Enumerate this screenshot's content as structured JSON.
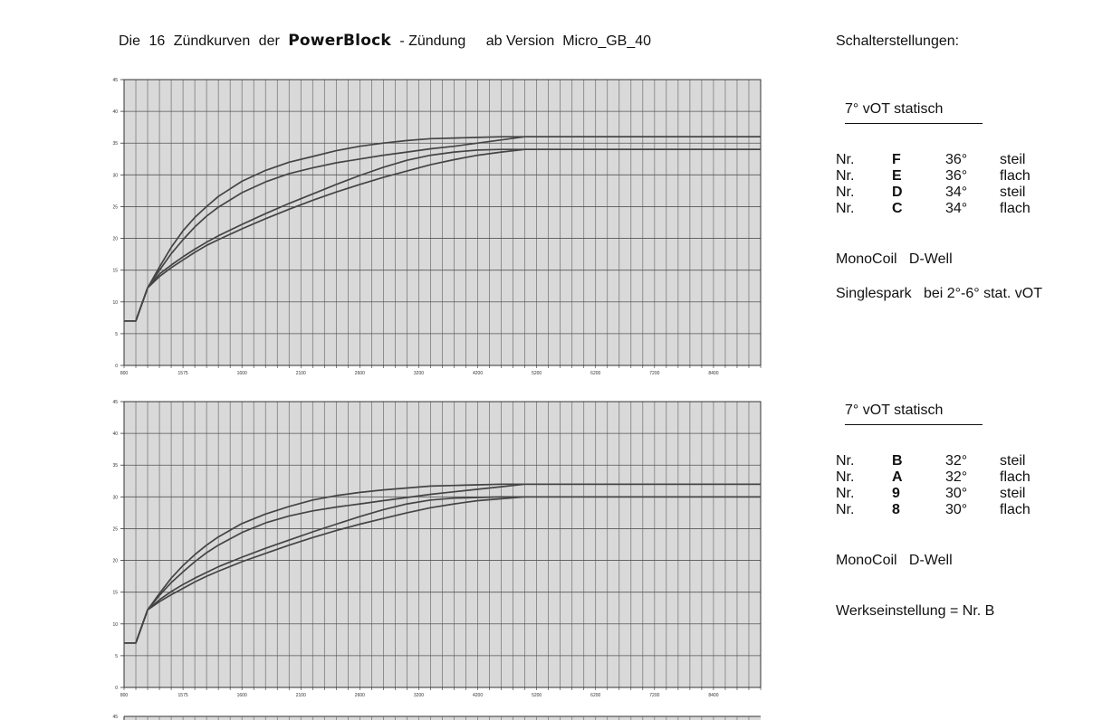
{
  "header": {
    "title_prefix": "Die",
    "title_count": "16",
    "title_word": "Zündkurven",
    "title_article": "der",
    "brand": "PowerBlock",
    "title_suffix": "- Zündung",
    "title_version": "ab Version  Micro_GB_40"
  },
  "sidebar": {
    "heading": "Schalterstellungen:",
    "panels": [
      {
        "subhead": "7° vOT  statisch",
        "settings": [
          {
            "prefix": "Nr.",
            "code": "F",
            "angle": "36°",
            "type": "steil"
          },
          {
            "prefix": "Nr.",
            "code": "E",
            "angle": "36°",
            "type": "flach"
          },
          {
            "prefix": "Nr.",
            "code": "D",
            "angle": "34°",
            "type": "steil"
          },
          {
            "prefix": "Nr.",
            "code": "C",
            "angle": "34°",
            "type": "flach"
          }
        ],
        "note1": "MonoCoil   D-Well",
        "note2": "Singlespark   bei 2°-6° stat. vOT"
      },
      {
        "subhead": "7° vOT  statisch",
        "settings": [
          {
            "prefix": "Nr.",
            "code": "B",
            "angle": "32°",
            "type": "steil"
          },
          {
            "prefix": "Nr.",
            "code": "A",
            "angle": "32°",
            "type": "flach"
          },
          {
            "prefix": "Nr.",
            "code": "9",
            "angle": "30°",
            "type": "steil"
          },
          {
            "prefix": "Nr.",
            "code": "8",
            "angle": "30°",
            "type": "flach"
          }
        ],
        "note1": "MonoCoil   D-Well",
        "note2": "Werkseinstellung = Nr. B"
      }
    ]
  },
  "chart_data": [
    {
      "type": "line",
      "title": "",
      "xlabel": "",
      "ylabel": "",
      "grid": true,
      "background": "#d9d9d9",
      "line_color": "#444444",
      "yticks": [
        0,
        5,
        10,
        15,
        20,
        25,
        30,
        35,
        40,
        45
      ],
      "ylim": [
        0,
        45
      ],
      "xtick_labels": [
        "800",
        "1575",
        "1600",
        "2100",
        "2600",
        "3200",
        "4200",
        "5200",
        "6200",
        "7200",
        "8400"
      ],
      "x_categories": 54,
      "series": [
        {
          "x": [
            0,
            1,
            2,
            3,
            4,
            5,
            6,
            7,
            8,
            10,
            12,
            14,
            16,
            18,
            20,
            22,
            24,
            26,
            28,
            30,
            32,
            34,
            54
          ],
          "values": [
            7,
            7,
            12.2,
            15.5,
            18.6,
            21.2,
            23.3,
            25,
            26.6,
            29,
            30.7,
            32,
            32.9,
            33.8,
            34.5,
            35,
            35.4,
            35.7,
            35.8,
            35.9,
            36,
            36,
            36
          ]
        },
        {
          "x": [
            0,
            1,
            2,
            3,
            4,
            5,
            6,
            7,
            8,
            10,
            12,
            14,
            16,
            18,
            20,
            22,
            24,
            26,
            28,
            30,
            32,
            34,
            54
          ],
          "values": [
            7,
            7,
            12.2,
            15,
            17.6,
            19.8,
            21.8,
            23.5,
            24.9,
            27.2,
            28.9,
            30.2,
            31.1,
            31.9,
            32.5,
            33.1,
            33.6,
            34.1,
            34.5,
            35,
            35.5,
            36,
            36
          ]
        },
        {
          "x": [
            0,
            1,
            2,
            3,
            4,
            5,
            6,
            7,
            8,
            10,
            12,
            14,
            16,
            18,
            20,
            22,
            24,
            26,
            28,
            30,
            32,
            34,
            54
          ],
          "values": [
            7,
            7,
            12.2,
            14.4,
            15.8,
            17.1,
            18.3,
            19.4,
            20.4,
            22.2,
            23.9,
            25.5,
            27,
            28.5,
            29.9,
            31.2,
            32.3,
            33.1,
            33.6,
            33.9,
            34,
            34,
            34
          ]
        },
        {
          "x": [
            0,
            1,
            2,
            3,
            4,
            5,
            6,
            7,
            8,
            10,
            12,
            14,
            16,
            18,
            20,
            22,
            24,
            26,
            28,
            30,
            32,
            34,
            54
          ],
          "values": [
            7,
            7,
            12.2,
            14,
            15.4,
            16.6,
            17.8,
            18.9,
            19.8,
            21.5,
            23.1,
            24.6,
            26,
            27.3,
            28.5,
            29.6,
            30.6,
            31.6,
            32.4,
            33.1,
            33.6,
            34,
            34
          ]
        }
      ]
    },
    {
      "type": "line",
      "title": "",
      "xlabel": "",
      "ylabel": "",
      "grid": true,
      "background": "#d9d9d9",
      "line_color": "#444444",
      "yticks": [
        0,
        5,
        10,
        15,
        20,
        25,
        30,
        35,
        40,
        45
      ],
      "ylim": [
        0,
        45
      ],
      "xtick_labels": [
        "800",
        "1575",
        "1600",
        "2100",
        "2600",
        "3200",
        "4200",
        "5200",
        "6200",
        "7200",
        "8400"
      ],
      "x_categories": 54,
      "series": [
        {
          "x": [
            0,
            1,
            2,
            3,
            4,
            5,
            6,
            7,
            8,
            10,
            12,
            14,
            16,
            18,
            20,
            22,
            24,
            26,
            28,
            30,
            32,
            34,
            54
          ],
          "values": [
            7,
            7,
            12.2,
            14.8,
            17.2,
            19.2,
            20.9,
            22.4,
            23.7,
            25.8,
            27.3,
            28.5,
            29.5,
            30.2,
            30.7,
            31.1,
            31.4,
            31.7,
            31.8,
            31.9,
            32,
            32,
            32
          ]
        },
        {
          "x": [
            0,
            1,
            2,
            3,
            4,
            5,
            6,
            7,
            8,
            10,
            12,
            14,
            16,
            18,
            20,
            22,
            24,
            26,
            28,
            30,
            32,
            34,
            54
          ],
          "values": [
            7,
            7,
            12.2,
            14.5,
            16.5,
            18.2,
            19.8,
            21.2,
            22.4,
            24.4,
            25.9,
            27,
            27.8,
            28.4,
            28.9,
            29.4,
            29.9,
            30.4,
            30.8,
            31.2,
            31.6,
            32,
            32
          ]
        },
        {
          "x": [
            0,
            1,
            2,
            3,
            4,
            5,
            6,
            7,
            8,
            10,
            12,
            14,
            16,
            18,
            20,
            22,
            24,
            26,
            28,
            30,
            32,
            34,
            54
          ],
          "values": [
            7,
            7,
            12.2,
            13.8,
            15.1,
            16.2,
            17.2,
            18.1,
            19,
            20.5,
            21.9,
            23.2,
            24.5,
            25.7,
            26.9,
            28,
            28.9,
            29.5,
            29.8,
            29.9,
            30,
            30,
            30
          ]
        },
        {
          "x": [
            0,
            1,
            2,
            3,
            4,
            5,
            6,
            7,
            8,
            10,
            12,
            14,
            16,
            18,
            20,
            22,
            24,
            26,
            28,
            30,
            32,
            34,
            54
          ],
          "values": [
            7,
            7,
            12.2,
            13.5,
            14.6,
            15.6,
            16.6,
            17.5,
            18.3,
            19.8,
            21.1,
            22.4,
            23.6,
            24.7,
            25.7,
            26.6,
            27.5,
            28.3,
            28.9,
            29.4,
            29.7,
            30,
            30
          ]
        }
      ]
    },
    {
      "type": "line",
      "partial": true,
      "yticks": [
        45
      ],
      "ylim": [
        0,
        45
      ]
    }
  ]
}
